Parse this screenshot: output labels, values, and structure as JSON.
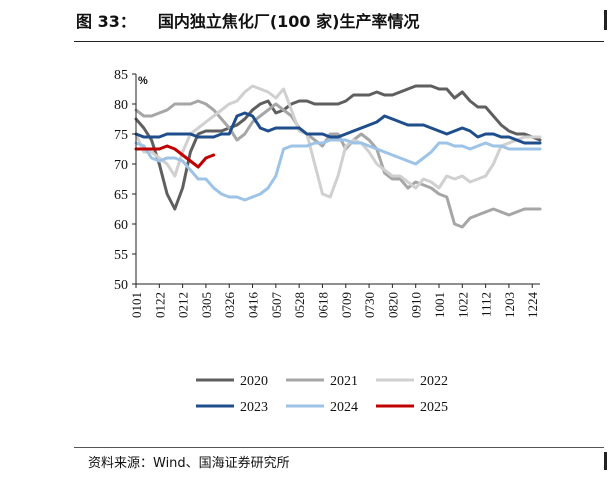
{
  "header": {
    "figure_label": "图 33：",
    "title": "国内独立焦化厂(100 家)生产率情况"
  },
  "source": "资料来源：Wind、国海证券研究所",
  "chart_data": {
    "type": "line",
    "title": "国内独立焦化厂(100 家)生产率情况",
    "ylabel": "%",
    "ylim": [
      50,
      85
    ],
    "yticks": [
      50,
      55,
      60,
      65,
      70,
      75,
      80,
      85
    ],
    "xlim": [
      0,
      52
    ],
    "xtick_labels": [
      "0101",
      "0122",
      "0212",
      "0305",
      "0326",
      "0416",
      "0507",
      "0528",
      "0618",
      "0709",
      "0730",
      "0820",
      "0910",
      "1001",
      "1022",
      "1112",
      "1203",
      "1224"
    ],
    "legend_position": "bottom",
    "series": [
      {
        "name": "2020",
        "color": "#5f5f5f",
        "values": [
          77.5,
          76,
          74,
          70,
          65,
          62.5,
          66,
          72,
          75,
          75.5,
          75.5,
          75.5,
          76,
          76.5,
          77.5,
          79,
          80,
          80.5,
          78.5,
          79,
          80,
          80.5,
          80.5,
          80,
          80,
          80,
          80,
          80.5,
          81.5,
          81.5,
          81.5,
          82,
          81.5,
          81.5,
          82,
          82.5,
          83,
          83,
          83,
          82.5,
          82.5,
          81,
          82,
          80.5,
          79.5,
          79.5,
          78,
          76.5,
          75.5,
          75,
          75,
          74.5,
          74
        ]
      },
      {
        "name": "2021",
        "color": "#a6a6a6",
        "values": [
          79,
          78,
          78,
          78.5,
          79,
          80,
          80,
          80,
          80.5,
          80,
          79,
          77.5,
          76,
          74,
          75,
          77,
          78,
          79,
          80,
          79,
          78,
          76,
          75,
          74,
          73,
          75,
          75,
          72.5,
          74,
          75,
          74,
          72.5,
          68.5,
          67.5,
          67.5,
          66,
          67,
          66.5,
          66,
          65,
          64.5,
          60,
          59.5,
          61,
          61.5,
          62,
          62.5,
          62,
          61.5,
          62,
          62.5,
          62.5,
          62.5
        ]
      },
      {
        "name": "2022",
        "color": "#d0d0d0",
        "values": [
          75,
          72,
          72,
          71,
          70,
          68,
          72,
          75,
          76,
          77,
          78,
          79,
          80,
          80.5,
          82,
          83,
          82.5,
          82,
          81,
          82.5,
          79,
          75.5,
          75,
          70,
          65,
          64.5,
          68,
          73,
          74,
          73.5,
          72,
          70,
          69,
          68,
          68,
          67,
          66,
          67.5,
          67,
          66,
          68,
          67.5,
          68,
          67,
          67.5,
          68,
          70,
          73,
          73.5,
          74,
          74.5,
          74.5,
          74.5
        ]
      },
      {
        "name": "2023",
        "color": "#1f4e8c",
        "values": [
          75,
          74.5,
          74.5,
          74.5,
          75,
          75,
          75,
          75,
          74.5,
          74.5,
          74.5,
          75,
          75,
          78,
          78.5,
          78,
          76,
          75.5,
          76,
          76,
          76,
          76,
          75,
          75,
          75,
          74.5,
          74.5,
          75,
          75.5,
          76,
          76.5,
          77,
          78,
          77.5,
          77,
          76.5,
          76.5,
          76.5,
          76,
          75.5,
          75,
          75.5,
          76,
          75.5,
          74.5,
          75,
          75,
          74.5,
          74.5,
          74,
          73.5,
          73.5,
          73.5
        ]
      },
      {
        "name": "2024",
        "color": "#9dc3e6",
        "values": [
          73.5,
          73,
          71,
          70.5,
          71,
          71,
          70.5,
          69,
          67.5,
          67.5,
          66,
          65,
          64.5,
          64.5,
          64,
          64.5,
          65,
          66,
          68,
          72.5,
          73,
          73,
          73,
          73.5,
          73.5,
          74,
          74,
          74,
          73.5,
          73.5,
          73,
          72.5,
          72,
          71.5,
          71,
          70.5,
          70,
          71,
          72,
          73.5,
          73.5,
          73,
          73,
          72.5,
          73,
          73.5,
          73,
          73,
          72.5,
          72.5,
          72.5,
          72.5,
          72.5
        ]
      },
      {
        "name": "2025",
        "color": "#c00000",
        "values": [
          72.5,
          72.5,
          72.5,
          72.5,
          73,
          72.5,
          71.5,
          70.5,
          69.5,
          71,
          71.5
        ]
      }
    ]
  }
}
